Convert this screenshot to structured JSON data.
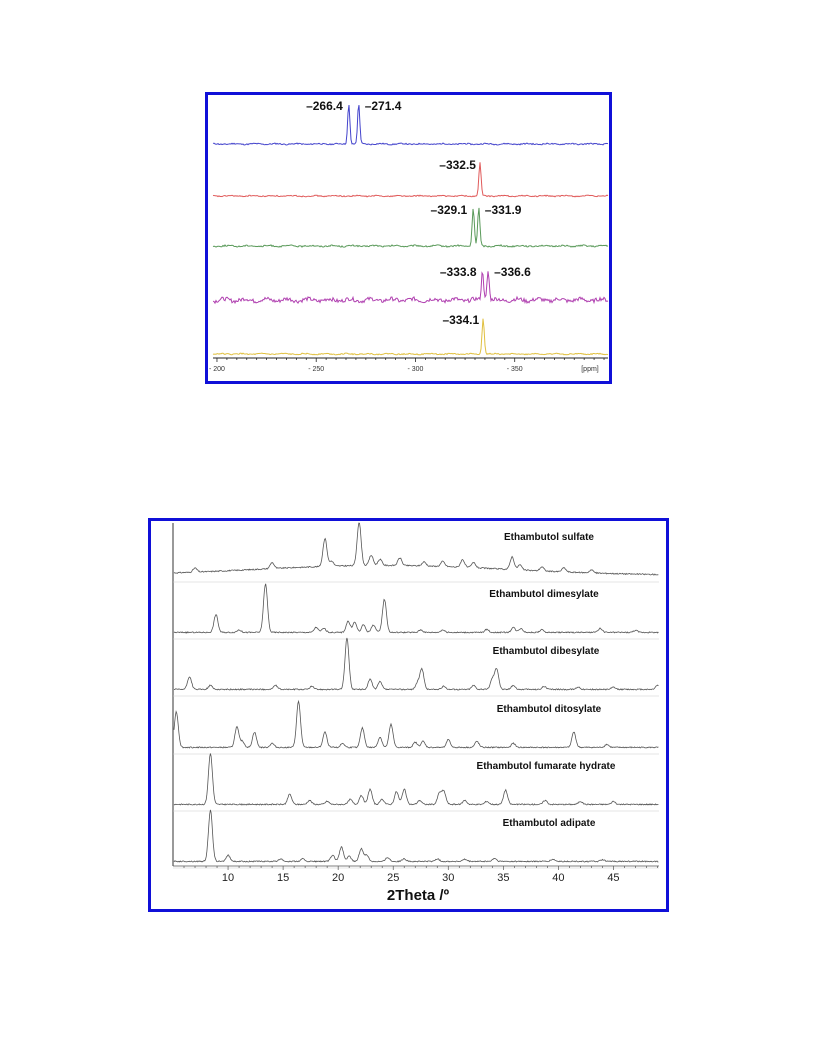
{
  "chart_data": [
    {
      "type": "line",
      "xlabel": "",
      "x_unit_label": "[ppm]",
      "x_ticks": [
        -200,
        -250,
        -300,
        -350
      ],
      "xlim": [
        -198,
        -397
      ],
      "reversed_x": true,
      "grid": false,
      "series": [
        {
          "color": "#4444cc",
          "peaks": [
            -266.4,
            -271.4
          ],
          "labels": [
            "–266.4",
            "–271.4"
          ],
          "noise": 0.5
        },
        {
          "color": "#e05a5a",
          "peaks": [
            -332.5
          ],
          "labels": [
            "–332.5"
          ],
          "noise": 0.45
        },
        {
          "color": "#5a9a5a",
          "peaks": [
            -329.1,
            -331.9
          ],
          "labels": [
            "–329.1",
            "–331.9"
          ],
          "noise": 0.6
        },
        {
          "color": "#b040b0",
          "peaks": [
            -333.8,
            -336.6
          ],
          "labels": [
            "–333.8",
            "–336.6"
          ],
          "noise": 1.6
        },
        {
          "color": "#e0c040",
          "peaks": [
            -334.1
          ],
          "labels": [
            "–334.1"
          ],
          "noise": 0.45
        }
      ]
    },
    {
      "type": "line",
      "xlabel": "2Theta /º",
      "x_ticks": [
        10,
        15,
        20,
        25,
        30,
        35,
        40,
        45
      ],
      "xlim": [
        5,
        49.5
      ],
      "grid": false,
      "series": [
        {
          "name": "Ethambutol sulfate",
          "peaks": [
            [
              7.0,
              0.08
            ],
            [
              14.0,
              0.12
            ],
            [
              18.8,
              0.55
            ],
            [
              19.4,
              0.1
            ],
            [
              21.9,
              0.85
            ],
            [
              23.0,
              0.2
            ],
            [
              23.8,
              0.12
            ],
            [
              25.6,
              0.15
            ],
            [
              27.8,
              0.08
            ],
            [
              29.5,
              0.1
            ],
            [
              31.3,
              0.15
            ],
            [
              32.3,
              0.1
            ],
            [
              35.8,
              0.25
            ],
            [
              36.5,
              0.1
            ],
            [
              38.5,
              0.08
            ],
            [
              40.5,
              0.08
            ],
            [
              43.0,
              0.06
            ]
          ]
        },
        {
          "name": "Ethambutol dimesylate",
          "peaks": [
            [
              8.9,
              0.35
            ],
            [
              11.0,
              0.05
            ],
            [
              13.4,
              0.95
            ],
            [
              18.0,
              0.1
            ],
            [
              18.7,
              0.08
            ],
            [
              20.9,
              0.22
            ],
            [
              21.5,
              0.2
            ],
            [
              22.3,
              0.15
            ],
            [
              23.2,
              0.15
            ],
            [
              24.2,
              0.65
            ],
            [
              27.5,
              0.05
            ],
            [
              29.5,
              0.05
            ],
            [
              33.5,
              0.06
            ],
            [
              35.9,
              0.1
            ],
            [
              36.6,
              0.08
            ],
            [
              38.5,
              0.05
            ],
            [
              43.8,
              0.08
            ],
            [
              47.0,
              0.04
            ]
          ]
        },
        {
          "name": "Ethambutol dibesylate",
          "peaks": [
            [
              6.5,
              0.25
            ],
            [
              8.4,
              0.08
            ],
            [
              14.3,
              0.08
            ],
            [
              17.6,
              0.06
            ],
            [
              20.8,
              1.0
            ],
            [
              22.9,
              0.2
            ],
            [
              23.8,
              0.15
            ],
            [
              27.2,
              0.12
            ],
            [
              27.6,
              0.4
            ],
            [
              29.6,
              0.06
            ],
            [
              32.3,
              0.08
            ],
            [
              34.0,
              0.2
            ],
            [
              34.4,
              0.4
            ],
            [
              35.9,
              0.08
            ],
            [
              38.7,
              0.06
            ],
            [
              41.8,
              0.05
            ],
            [
              45.0,
              0.04
            ],
            [
              49.0,
              0.08
            ]
          ]
        },
        {
          "name": "Ethambutol ditosylate",
          "peaks": [
            [
              5.3,
              0.7
            ],
            [
              10.8,
              0.4
            ],
            [
              11.3,
              0.12
            ],
            [
              12.4,
              0.3
            ],
            [
              14.0,
              0.08
            ],
            [
              16.4,
              0.9
            ],
            [
              18.8,
              0.3
            ],
            [
              20.4,
              0.08
            ],
            [
              22.2,
              0.38
            ],
            [
              23.8,
              0.2
            ],
            [
              24.8,
              0.45
            ],
            [
              27.0,
              0.1
            ],
            [
              27.7,
              0.12
            ],
            [
              30.0,
              0.15
            ],
            [
              32.6,
              0.12
            ],
            [
              35.9,
              0.08
            ],
            [
              41.4,
              0.3
            ],
            [
              44.4,
              0.06
            ]
          ]
        },
        {
          "name": "Ethambutol fumarate hydrate",
          "peaks": [
            [
              8.4,
              1.0
            ],
            [
              15.6,
              0.2
            ],
            [
              17.4,
              0.08
            ],
            [
              19.0,
              0.06
            ],
            [
              21.1,
              0.1
            ],
            [
              22.1,
              0.18
            ],
            [
              22.9,
              0.3
            ],
            [
              24.0,
              0.1
            ],
            [
              25.3,
              0.25
            ],
            [
              26.0,
              0.3
            ],
            [
              27.4,
              0.08
            ],
            [
              29.2,
              0.22
            ],
            [
              29.6,
              0.25
            ],
            [
              31.5,
              0.08
            ],
            [
              33.5,
              0.06
            ],
            [
              35.2,
              0.28
            ],
            [
              38.8,
              0.08
            ],
            [
              42.0,
              0.06
            ],
            [
              45.0,
              0.06
            ]
          ]
        },
        {
          "name": "Ethambutol adipate",
          "peaks": [
            [
              8.4,
              1.0
            ],
            [
              10.0,
              0.12
            ],
            [
              14.8,
              0.05
            ],
            [
              16.8,
              0.05
            ],
            [
              19.5,
              0.12
            ],
            [
              20.3,
              0.28
            ],
            [
              21.0,
              0.1
            ],
            [
              22.1,
              0.25
            ],
            [
              22.6,
              0.12
            ],
            [
              24.5,
              0.08
            ],
            [
              26.0,
              0.05
            ],
            [
              29.0,
              0.05
            ],
            [
              31.5,
              0.04
            ],
            [
              34.2,
              0.06
            ],
            [
              39.5,
              0.04
            ],
            [
              44.0,
              0.03
            ]
          ]
        }
      ]
    }
  ]
}
